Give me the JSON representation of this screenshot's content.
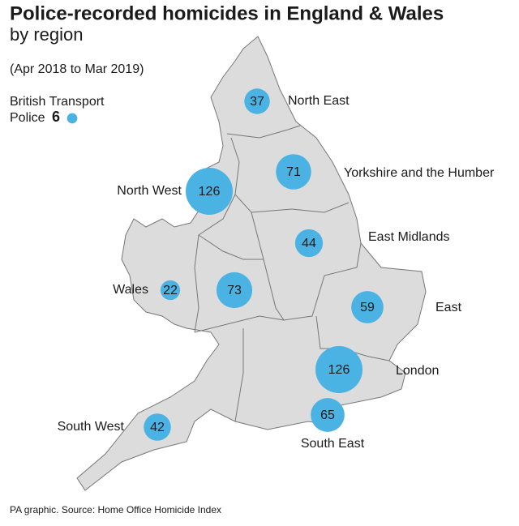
{
  "header": {
    "title": "Police-recorded homicides in England & Wales",
    "subtitle": "by region",
    "period": "(Apr 2018 to Mar 2019)"
  },
  "transport_police": {
    "label_line1": "British Transport",
    "label_line2": "Police",
    "value": 6
  },
  "bubble_color": "#4ab3e3",
  "regions": [
    {
      "name": "North East",
      "value": 37
    },
    {
      "name": "Yorkshire and the Humber",
      "value": 71
    },
    {
      "name": "North West",
      "value": 126
    },
    {
      "name": "East Midlands",
      "value": 44
    },
    {
      "name": "Wales",
      "value": 22
    },
    {
      "value": 73
    },
    {
      "name": "East",
      "value": 59
    },
    {
      "name": "London",
      "value": 126
    },
    {
      "name": "South East",
      "value": 65
    },
    {
      "name": "South West",
      "value": 42
    }
  ],
  "source": "PA graphic. Source: Home Office Homicide Index"
}
